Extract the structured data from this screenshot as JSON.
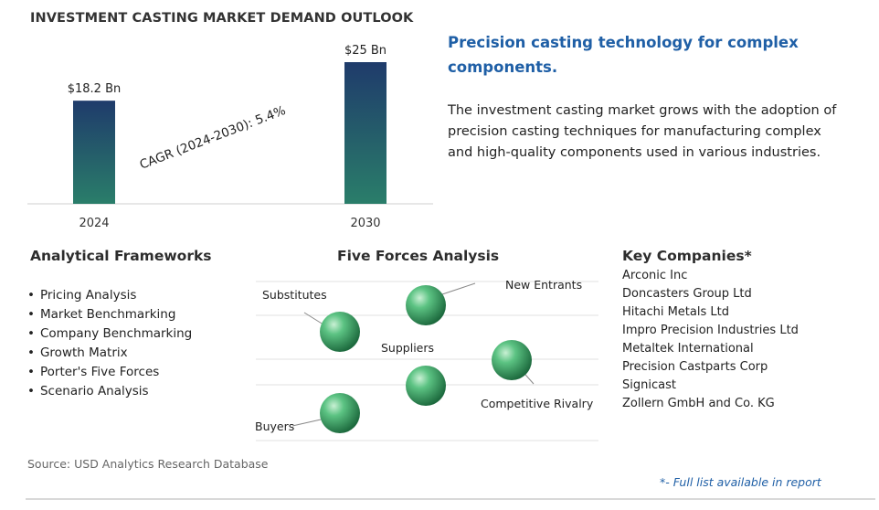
{
  "title": "INVESTMENT CASTING MARKET DEMAND OUTLOOK",
  "chart_data": {
    "type": "bar",
    "categories": [
      "2024",
      "2030"
    ],
    "values": [
      18.2,
      25
    ],
    "data_labels": [
      "$18.2 Bn",
      "$25 Bn"
    ],
    "unit": "Bn",
    "ylim": [
      0,
      25
    ],
    "annotation": "CAGR (2024-2030):  5.4%",
    "grid": false,
    "bar_colors": [
      "#1f3b6b",
      "#2a7e6a"
    ]
  },
  "headline": "Precision casting technology for complex components.",
  "description": "The investment casting market grows with the adoption of precision casting techniques for manufacturing complex and high-quality components used in various industries.",
  "frameworks": {
    "title": "Analytical Frameworks",
    "items": [
      "Pricing Analysis",
      "Market Benchmarking",
      "Company Benchmarking",
      "Growth Matrix",
      "Porter's Five Forces",
      "Scenario Analysis"
    ]
  },
  "five_forces": {
    "title": "Five Forces Analysis",
    "labels": {
      "substitutes": "Substitutes",
      "new_entrants": "New Entrants",
      "suppliers": "Suppliers",
      "competitive_rivalry": "Competitive Rivalry",
      "buyers": "Buyers"
    },
    "sphere_color": "#3faa6a"
  },
  "companies": {
    "title": "Key Companies*",
    "items": [
      "Arconic Inc",
      "Doncasters Group Ltd",
      "Hitachi Metals Ltd",
      "Impro Precision Industries Ltd",
      "Metaltek International",
      "Precision Castparts Corp",
      "Signicast",
      "Zollern GmbH and Co. KG"
    ]
  },
  "source": "Source: USD Analytics Research Database",
  "footnote": "*- Full list available in report"
}
